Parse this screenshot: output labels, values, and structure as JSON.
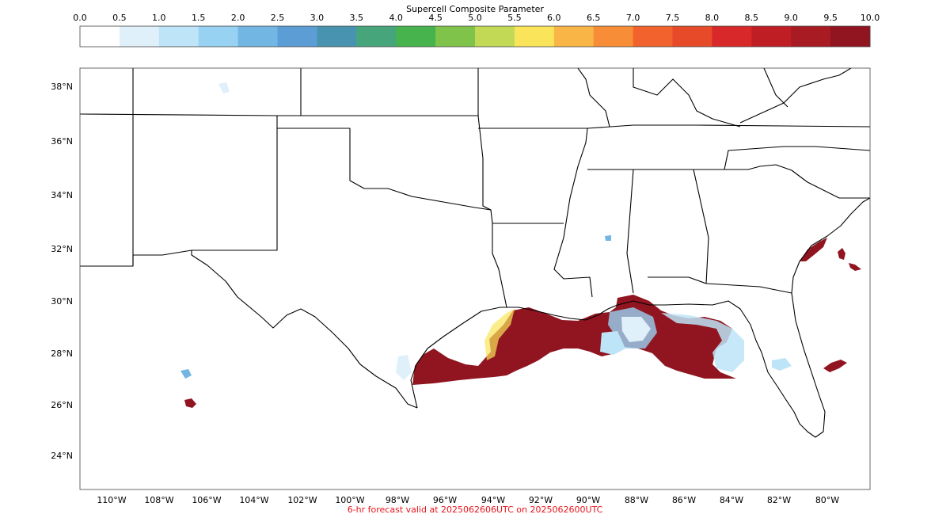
{
  "colorbar": {
    "title": "Supercell Composite Parameter",
    "ticks": [
      "0.0",
      "0.5",
      "1.0",
      "1.5",
      "2.0",
      "2.5",
      "3.0",
      "3.5",
      "4.0",
      "4.5",
      "5.0",
      "5.5",
      "6.0",
      "6.5",
      "7.0",
      "7.5",
      "8.0",
      "8.5",
      "9.0",
      "9.5",
      "10.0"
    ],
    "colors": [
      "#ffffff",
      "#dff0fa",
      "#bde4f7",
      "#97d2f2",
      "#72b6e3",
      "#5c9dd6",
      "#4894b0",
      "#47a57c",
      "#46b34c",
      "#7fc34a",
      "#c2d955",
      "#fae55a",
      "#f9b546",
      "#f78d36",
      "#f2622c",
      "#e64a28",
      "#d8282a",
      "#c01e25",
      "#a81b22",
      "#901520"
    ]
  },
  "map": {
    "lat_labels": [
      "38°N",
      "36°N",
      "34°N",
      "32°N",
      "30°N",
      "28°N",
      "26°N",
      "24°N"
    ],
    "lon_labels": [
      "110°W",
      "108°W",
      "106°W",
      "104°W",
      "102°W",
      "100°W",
      "98°W",
      "96°W",
      "94°W",
      "92°W",
      "90°W",
      "88°W",
      "86°W",
      "84°W",
      "82°W",
      "80°W"
    ],
    "high_color": "#901520"
  },
  "caption": "6-hr forecast valid at 2025062606UTC on 2025062600UTC"
}
